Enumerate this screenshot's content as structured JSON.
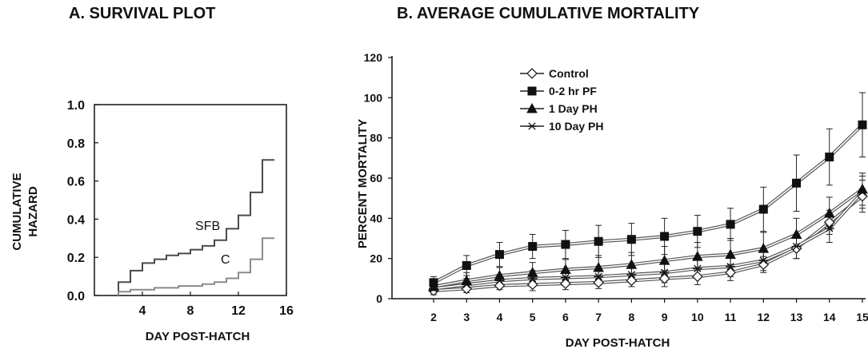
{
  "chart_data": [
    {
      "type": "line",
      "title": "A. SURVIVAL PLOT",
      "xlabel": "DAY POST-HATCH",
      "ylabel_lines": [
        "CUMULATIVE",
        "HAZARD"
      ],
      "xlim": [
        0,
        16
      ],
      "ylim": [
        0,
        1.0
      ],
      "xticks": [
        "4",
        "8",
        "12",
        "16"
      ],
      "yticks": [
        "0.0",
        "0.2",
        "0.4",
        "0.6",
        "0.8",
        "1.0"
      ],
      "grid": false,
      "step": true,
      "series": [
        {
          "name": "SFB",
          "color": "#4a4a4a",
          "x": [
            2,
            2,
            3,
            3,
            4,
            4,
            5,
            5,
            6,
            6,
            7,
            7,
            8,
            8,
            9,
            9,
            10,
            10,
            11,
            11,
            12,
            12,
            13,
            13,
            14,
            14,
            15
          ],
          "y": [
            0.0,
            0.07,
            0.07,
            0.13,
            0.13,
            0.17,
            0.17,
            0.19,
            0.19,
            0.21,
            0.21,
            0.22,
            0.22,
            0.24,
            0.24,
            0.26,
            0.26,
            0.29,
            0.29,
            0.35,
            0.35,
            0.42,
            0.42,
            0.54,
            0.54,
            0.71,
            0.71
          ]
        },
        {
          "name": "C",
          "color": "#8a8a8a",
          "x": [
            2,
            2,
            3,
            3,
            5,
            5,
            7,
            7,
            9,
            9,
            10,
            10,
            11,
            11,
            12,
            12,
            13,
            13,
            14,
            14,
            15
          ],
          "y": [
            0.0,
            0.02,
            0.02,
            0.03,
            0.03,
            0.04,
            0.04,
            0.05,
            0.05,
            0.06,
            0.06,
            0.07,
            0.07,
            0.09,
            0.09,
            0.12,
            0.12,
            0.19,
            0.19,
            0.3,
            0.3
          ]
        }
      ]
    },
    {
      "type": "line",
      "title": "B. AVERAGE CUMULATIVE MORTALITY",
      "xlabel": "DAY POST-HATCH",
      "ylabel": "PERCENT MORTALITY",
      "categories": [
        "2",
        "3",
        "4",
        "5",
        "6",
        "7",
        "8",
        "9",
        "10",
        "11",
        "12",
        "13",
        "14",
        "15"
      ],
      "ylim": [
        0,
        120
      ],
      "yticks": [
        "0",
        "20",
        "40",
        "60",
        "80",
        "100",
        "120"
      ],
      "grid": false,
      "legend": "top-left",
      "series": [
        {
          "name": "Control",
          "marker": "diamond",
          "values": [
            4,
            5,
            6.5,
            7,
            7.5,
            8,
            9,
            10,
            11,
            13,
            17,
            25,
            38,
            51
          ],
          "err": [
            2,
            2,
            2,
            3,
            3,
            3,
            3,
            4,
            4,
            4,
            4,
            5,
            6,
            8
          ]
        },
        {
          "name": "0-2 hr PF",
          "marker": "square",
          "values": [
            8,
            16.5,
            22,
            26,
            27,
            28.5,
            29.5,
            31,
            33.5,
            37,
            44.5,
            57.5,
            70.5,
            86.5
          ],
          "err": [
            3,
            5,
            6,
            6,
            7,
            8,
            8,
            9,
            8,
            8,
            11,
            14,
            14,
            16
          ]
        },
        {
          "name": "1 Day PH",
          "marker": "triangle",
          "values": [
            6,
            9,
            11.5,
            13,
            14.5,
            15.5,
            17,
            19,
            21,
            22,
            25,
            32,
            42.5,
            54.5
          ],
          "err": [
            3,
            4,
            4,
            5,
            5,
            6,
            6,
            7,
            7,
            8,
            8,
            8,
            8,
            8
          ]
        },
        {
          "name": "10 Day PH",
          "marker": "star",
          "values": [
            5,
            7,
            9,
            10,
            10.5,
            11,
            12,
            13,
            15,
            16,
            19,
            26,
            35,
            53
          ],
          "err": [
            2,
            3,
            3,
            4,
            4,
            4,
            4,
            5,
            5,
            5,
            5,
            6,
            7,
            8
          ]
        }
      ]
    }
  ],
  "panel_a": {
    "title": "A. SURVIVAL PLOT",
    "xlabel": "DAY POST-HATCH",
    "ylabel_line1": "CUMULATIVE",
    "ylabel_line2": "HAZARD",
    "label_sfb": "SFB",
    "label_c": "C"
  },
  "panel_b": {
    "title": "B. AVERAGE CUMULATIVE MORTALITY",
    "xlabel": "DAY POST-HATCH",
    "ylabel": "PERCENT MORTALITY"
  }
}
